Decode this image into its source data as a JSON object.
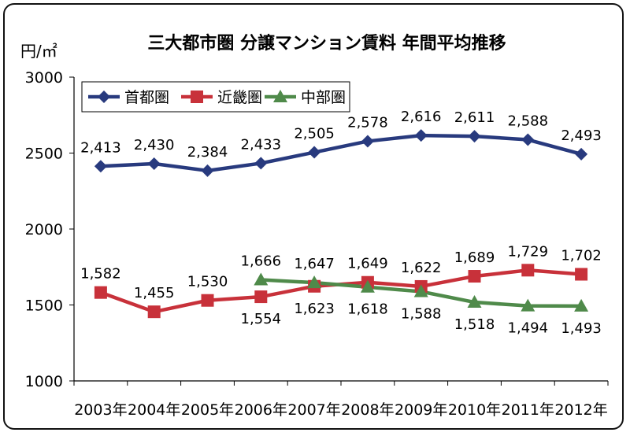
{
  "chart_data": {
    "type": "line",
    "title": "三大都市圏 分譲マンション賃料 年間平均推移",
    "ylabel": "円/㎡",
    "xlabel": "",
    "categories": [
      "2003年",
      "2004年",
      "2005年",
      "2006年",
      "2007年",
      "2008年",
      "2009年",
      "2010年",
      "2011年",
      "2012年"
    ],
    "ylim": [
      1000,
      3000
    ],
    "yticks": [
      1000,
      1500,
      2000,
      2500,
      3000
    ],
    "grid": false,
    "legend_position": "top-left",
    "series": [
      {
        "name": "首都圏",
        "color": "#283a7e",
        "marker": "diamond",
        "values": [
          2413,
          2430,
          2384,
          2433,
          2505,
          2578,
          2616,
          2611,
          2588,
          2493
        ],
        "labels": [
          "2,413",
          "2,430",
          "2,384",
          "2,433",
          "2,505",
          "2,578",
          "2,616",
          "2,611",
          "2,588",
          "2,493"
        ]
      },
      {
        "name": "近畿圏",
        "color": "#c8313a",
        "marker": "square",
        "values": [
          1582,
          1455,
          1530,
          1554,
          1623,
          1649,
          1622,
          1689,
          1729,
          1702
        ],
        "labels": [
          "1,582",
          "1,455",
          "1,530",
          "1,554",
          "1,623",
          "1,649",
          "1,622",
          "1,689",
          "1,729",
          "1,702"
        ]
      },
      {
        "name": "中部圏",
        "color": "#4f8a4a",
        "marker": "triangle",
        "values": [
          null,
          null,
          null,
          1666,
          1647,
          1618,
          1588,
          1518,
          1494,
          1493
        ],
        "labels": [
          null,
          null,
          null,
          "1,666",
          "1,647",
          "1,618",
          "1,588",
          "1,518",
          "1,494",
          "1,493"
        ]
      }
    ]
  }
}
